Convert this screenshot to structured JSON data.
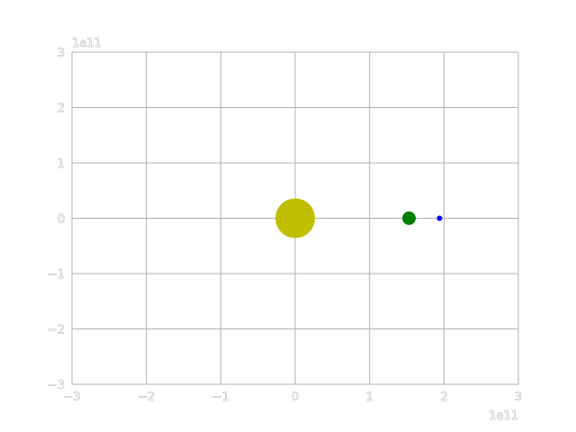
{
  "chart_data": {
    "type": "scatter",
    "title": "",
    "xlabel": "",
    "ylabel": "",
    "xlim": [
      -3,
      3
    ],
    "ylim": [
      -3,
      3
    ],
    "xticks": [
      "−3",
      "−2",
      "−1",
      "0",
      "1",
      "2",
      "3"
    ],
    "yticks": [
      "−3",
      "−2",
      "−1",
      "0",
      "1",
      "2",
      "3"
    ],
    "x_offset_text": "1e11",
    "y_offset_text": "1e11",
    "grid": true,
    "series": [
      {
        "x": 0.0,
        "y": 0.0,
        "color": "#bfbf00",
        "marker": "large circle"
      },
      {
        "x": 1.53,
        "y": 0.0,
        "color": "#008000",
        "marker": "medium circle"
      },
      {
        "x": 1.94,
        "y": 0.0,
        "color": "#0000ff",
        "marker": "small circle"
      }
    ]
  }
}
